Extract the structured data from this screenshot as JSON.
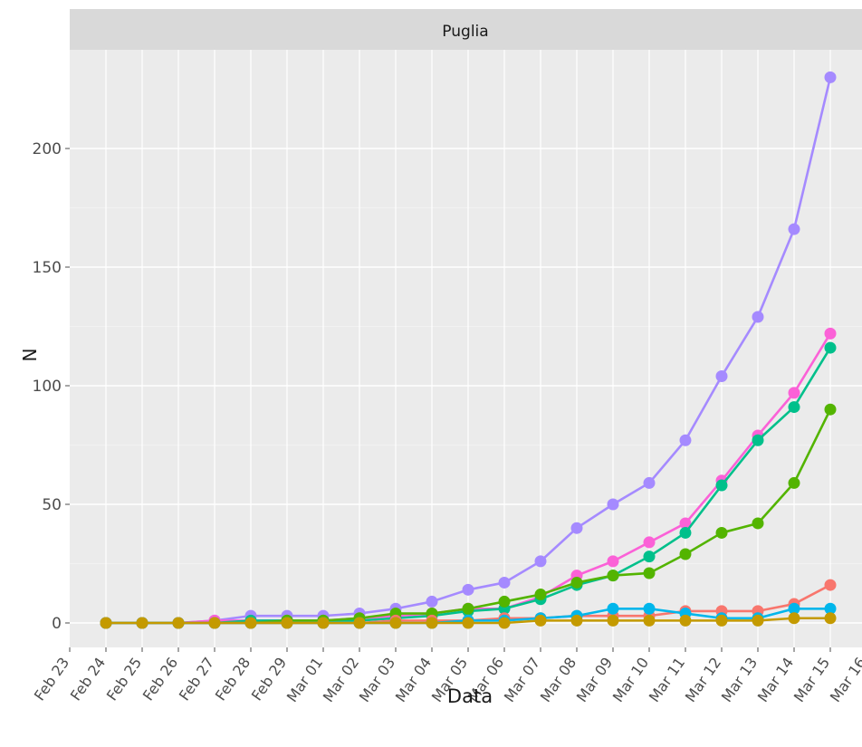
{
  "chart_data": {
    "type": "line",
    "facet_title": "Puglia",
    "xlabel": "Data",
    "ylabel": "N",
    "x_tick_labels": [
      "Feb 23",
      "Feb 24",
      "Feb 25",
      "Feb 26",
      "Feb 27",
      "Feb 28",
      "Feb 29",
      "Mar 01",
      "Mar 02",
      "Mar 03",
      "Mar 04",
      "Mar 05",
      "Mar 06",
      "Mar 07",
      "Mar 08",
      "Mar 09",
      "Mar 10",
      "Mar 11",
      "Mar 12",
      "Mar 13",
      "Mar 14",
      "Mar 15",
      "Mar 16"
    ],
    "y_ticks": [
      0,
      50,
      100,
      150,
      200
    ],
    "ylim": [
      -12,
      240
    ],
    "grid": true,
    "x": [
      "Feb 24",
      "Feb 25",
      "Feb 26",
      "Feb 27",
      "Feb 28",
      "Feb 29",
      "Mar 01",
      "Mar 02",
      "Mar 03",
      "Mar 04",
      "Mar 05",
      "Mar 06",
      "Mar 07",
      "Mar 08",
      "Mar 09",
      "Mar 10",
      "Mar 11",
      "Mar 12",
      "Mar 13",
      "Mar 14",
      "Mar 15"
    ],
    "series": [
      {
        "color": "#a58aff",
        "values": [
          0,
          0,
          0,
          1,
          3,
          3,
          3,
          4,
          6,
          9,
          14,
          17,
          26,
          40,
          50,
          59,
          77,
          104,
          129,
          166,
          230
        ]
      },
      {
        "color": "#fb61d7",
        "values": [
          0,
          0,
          0,
          1,
          1,
          1,
          1,
          2,
          3,
          4,
          6,
          6,
          11,
          20,
          26,
          34,
          42,
          60,
          79,
          97,
          122
        ]
      },
      {
        "color": "#00c08b",
        "values": [
          0,
          0,
          0,
          0,
          1,
          1,
          1,
          1,
          2,
          3,
          5,
          6,
          10,
          16,
          20,
          28,
          38,
          58,
          77,
          91,
          116
        ]
      },
      {
        "color": "#53b400",
        "values": [
          0,
          0,
          0,
          0,
          0,
          1,
          1,
          2,
          4,
          4,
          6,
          9,
          12,
          17,
          20,
          21,
          29,
          38,
          42,
          59,
          90
        ]
      },
      {
        "color": "#f8766d",
        "values": [
          0,
          0,
          0,
          0,
          0,
          0,
          0,
          0,
          1,
          1,
          1,
          2,
          2,
          3,
          3,
          3,
          5,
          5,
          5,
          8,
          16
        ]
      },
      {
        "color": "#00b6eb",
        "values": [
          0,
          0,
          0,
          0,
          0,
          0,
          0,
          0,
          0,
          0,
          1,
          1,
          2,
          3,
          6,
          6,
          4,
          2,
          2,
          6,
          6
        ]
      },
      {
        "color": "#c49a00",
        "values": [
          0,
          0,
          0,
          0,
          0,
          0,
          0,
          0,
          0,
          0,
          0,
          0,
          1,
          1,
          1,
          1,
          1,
          1,
          1,
          2,
          2
        ]
      }
    ]
  }
}
